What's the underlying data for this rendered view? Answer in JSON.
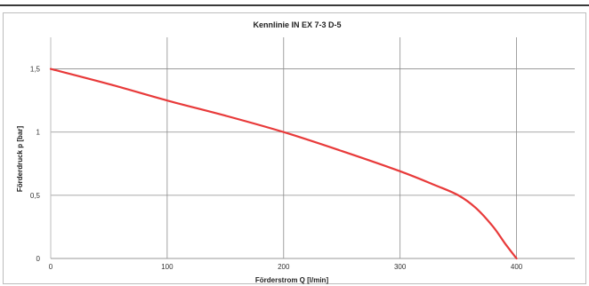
{
  "chart_data": {
    "type": "line",
    "title": "Kennlinie IN EX 7-3 D-5",
    "xlabel": "Förderstrom Q [l/min]",
    "ylabel": "Förderdruck p [bar]",
    "xlim": [
      0,
      450
    ],
    "ylim": [
      0,
      1.75
    ],
    "x_ticks": [
      0,
      100,
      200,
      300,
      400
    ],
    "x_tick_labels": [
      "0",
      "100",
      "200",
      "300",
      "400"
    ],
    "y_ticks": [
      0,
      0.5,
      1,
      1.5
    ],
    "y_tick_labels": [
      "0",
      "0,5",
      "1",
      "1,5"
    ],
    "grid": true,
    "series_color": "#e83a3a",
    "series": [
      {
        "x": [
          0,
          50,
          100,
          150,
          200,
          250,
          300,
          330,
          350,
          365,
          380,
          390,
          400
        ],
        "y": [
          1.5,
          1.38,
          1.25,
          1.13,
          1.0,
          0.85,
          0.69,
          0.58,
          0.5,
          0.4,
          0.25,
          0.12,
          0.0
        ]
      }
    ]
  }
}
